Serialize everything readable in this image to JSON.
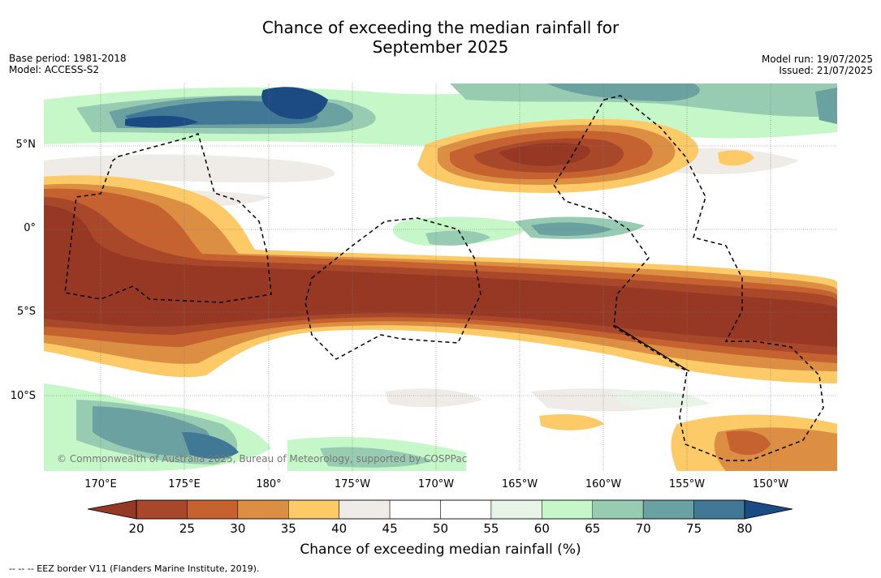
{
  "title_line1": "Chance of exceeding the median rainfall for",
  "title_line2": "September 2025",
  "meta_left": [
    "Base period: 1981-2018",
    "Model: ACCESS-S2"
  ],
  "meta_right": [
    "Model run: 19/07/2025",
    "Issued: 21/07/2025"
  ],
  "lat_labels": [
    "5°N",
    "0°",
    "5°S",
    "10°S"
  ],
  "lon_labels": [
    "170°E",
    "175°E",
    "180°",
    "175°W",
    "170°W",
    "165°W",
    "160°W",
    "155°W",
    "150°W"
  ],
  "copyright": "© Commonwealth of Australia 2025, Bureau of Meteorology, supported by COSPPac",
  "colorbar": {
    "ticks": [
      "20",
      "25",
      "30",
      "35",
      "40",
      "45",
      "50",
      "55",
      "60",
      "65",
      "70",
      "75",
      "80"
    ],
    "colors": [
      "#a8472a",
      "#c5622f",
      "#dc8f43",
      "#fdca68",
      "#efebe7",
      "#ffffff",
      "#ffffff",
      "#e9f4e8",
      "#c6f7c8",
      "#98ccb2",
      "#6ba1a1",
      "#417896"
    ],
    "under_color": "#963823",
    "over_color": "#1b4b82",
    "label": "Chance of exceeding median rainfall (%)"
  },
  "footer": "--  --  -- EEZ border V11 (Flanders Marine Institute, 2019)."
}
